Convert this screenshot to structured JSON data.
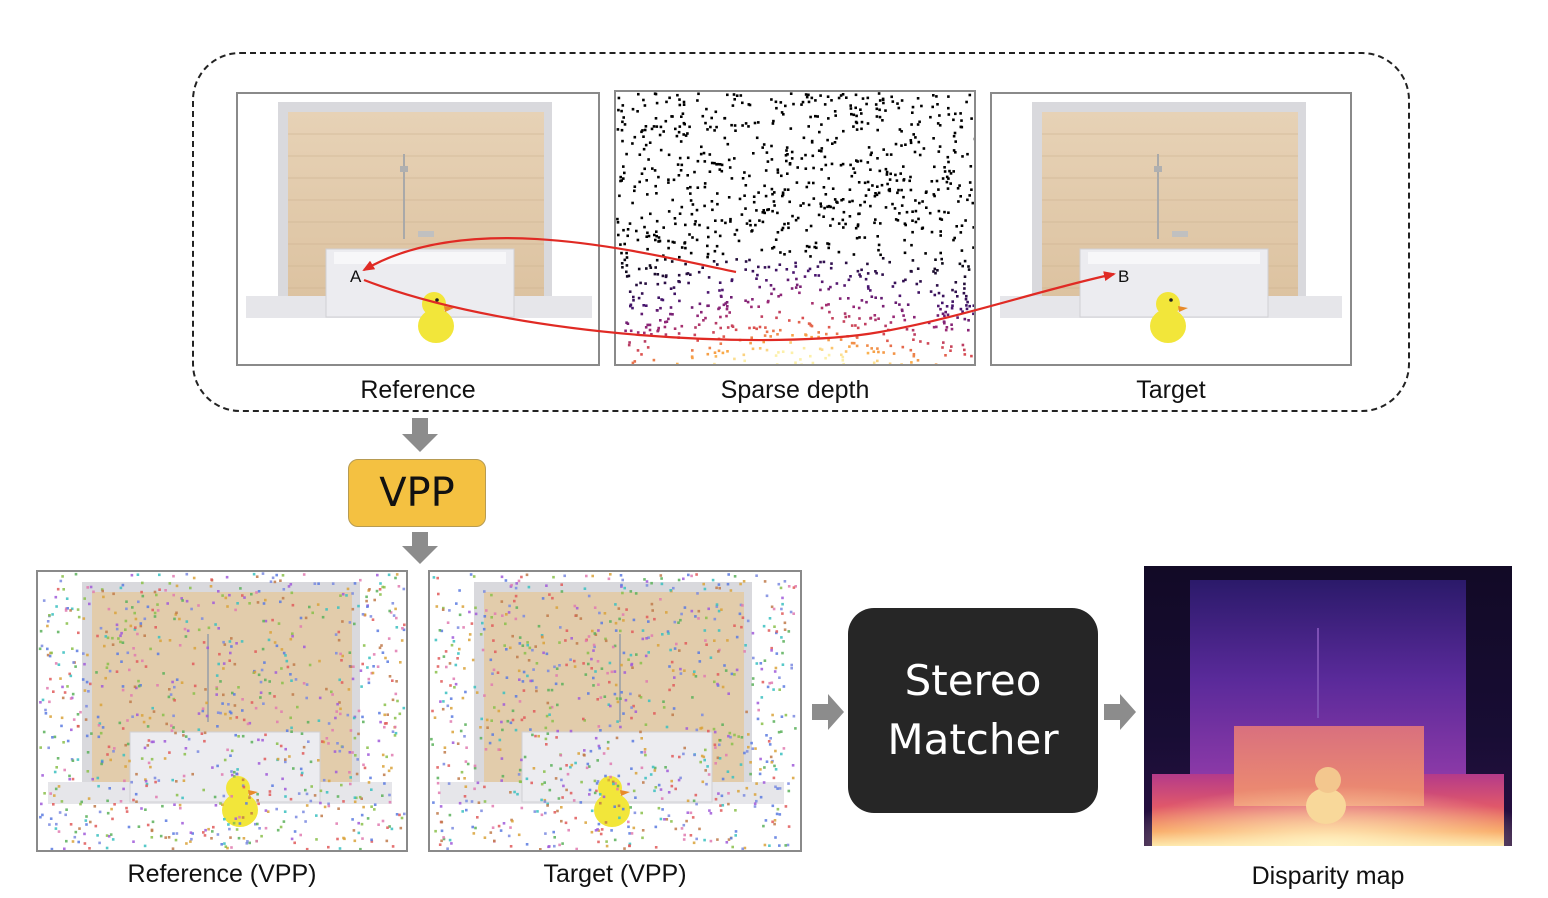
{
  "top_group": {
    "reference_caption": "Reference",
    "sparse_caption": "Sparse depth",
    "target_caption": "Target",
    "point_a": "A",
    "point_b": "B"
  },
  "vpp_label": "VPP",
  "stereo_matcher": {
    "line1": "Stereo",
    "line2": "Matcher"
  },
  "bottom_group": {
    "reference_vpp_caption": "Reference (VPP)",
    "target_vpp_caption": "Target (VPP)",
    "disparity_caption": "Disparity map"
  },
  "colors": {
    "correspondence_arrow": "#e02a24",
    "vpp_box": "#f4c141",
    "stereo_box": "#262626",
    "flow_arrow": "#8c8c8c"
  }
}
